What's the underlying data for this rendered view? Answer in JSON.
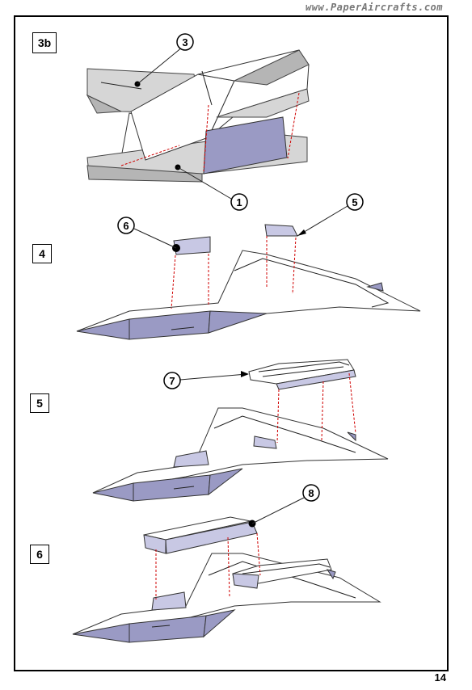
{
  "website": "www.PaperAircrafts.com",
  "page_number": "14",
  "steps": [
    {
      "label": "3b"
    },
    {
      "label": "4"
    },
    {
      "label": "5"
    },
    {
      "label": "6"
    }
  ],
  "callouts": [
    "3",
    "1",
    "6",
    "5",
    "7",
    "8"
  ],
  "colors": {
    "part_fill": "#9a9ac4",
    "guide_line": "#d00000"
  }
}
